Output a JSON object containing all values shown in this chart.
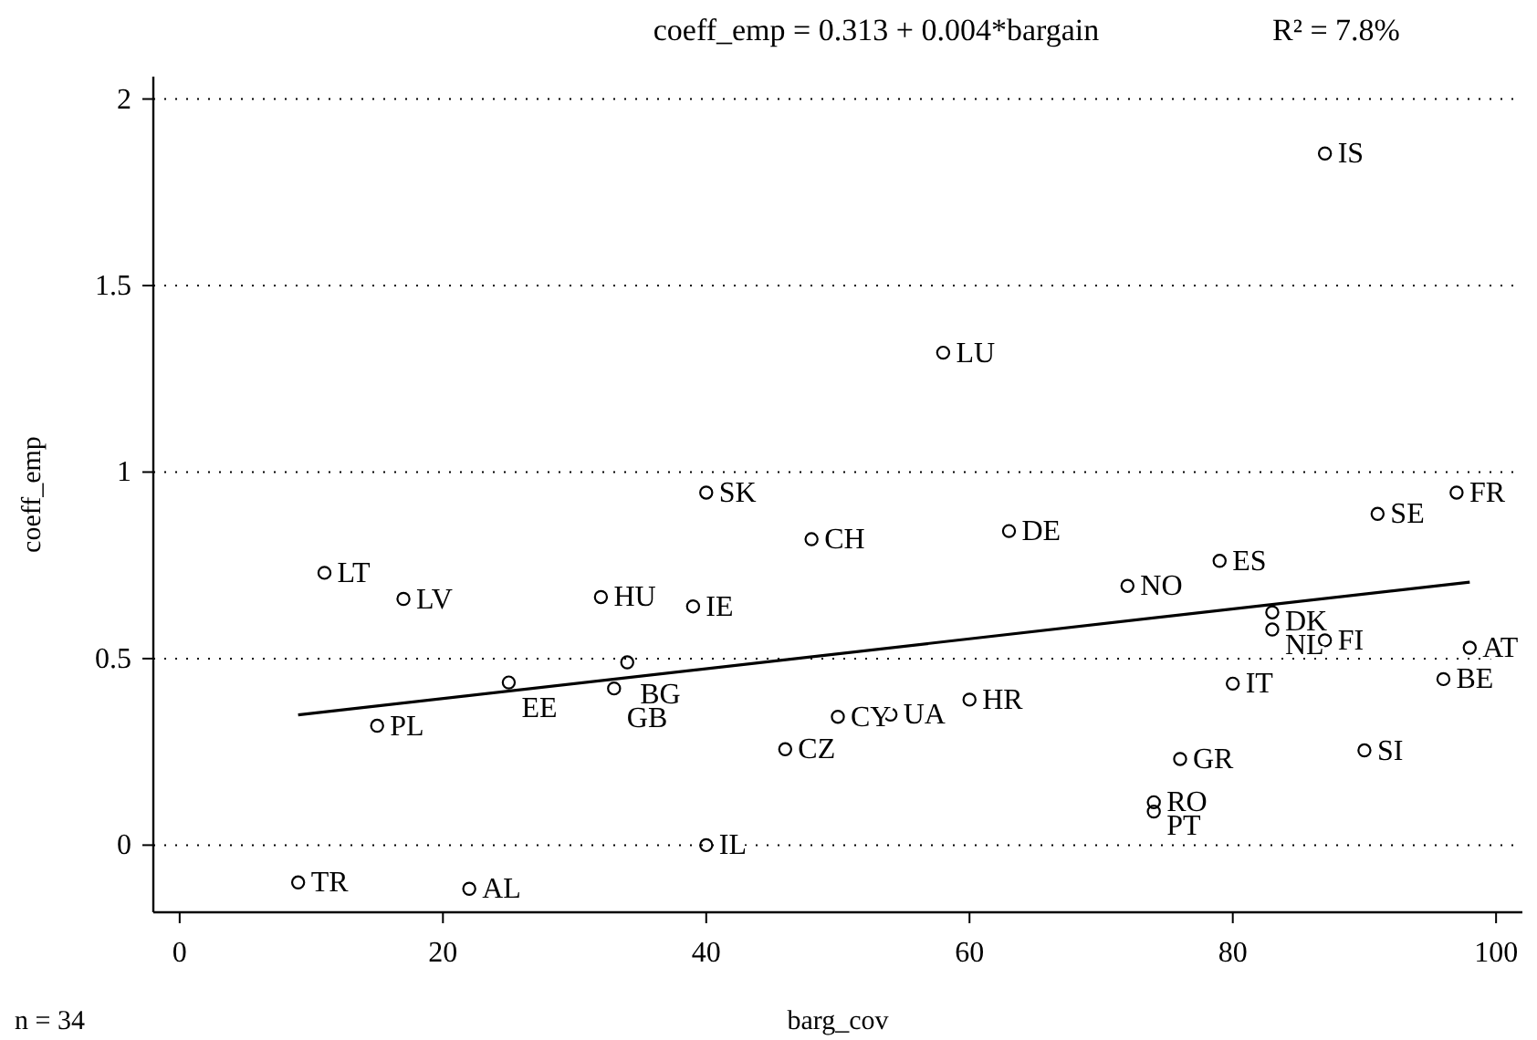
{
  "chart_data": {
    "type": "scatter",
    "title": "coeff_emp = 0.313 + 0.004*bargain",
    "subtitle": "R² = 7.8%",
    "xlabel": "barg_cov",
    "ylabel": "coeff_emp",
    "xlim": [
      -2,
      102
    ],
    "xticks": [
      0,
      20,
      40,
      60,
      80,
      100
    ],
    "ylim": [
      -0.18,
      2.06
    ],
    "yticks": [
      0,
      0.5,
      1,
      1.5,
      2
    ],
    "grid": "y",
    "series": [
      {
        "marker": "circle",
        "color": "#000000",
        "x": [
          87,
          58,
          40,
          97,
          48,
          63,
          91,
          11,
          32,
          17,
          39,
          79,
          72,
          83,
          83,
          87,
          34,
          98,
          25,
          33,
          96,
          80,
          15,
          60,
          50,
          54,
          46,
          90,
          76,
          74,
          74,
          40,
          9,
          22
        ],
        "values": [
          1.854,
          1.32,
          0.945,
          0.945,
          0.82,
          0.842,
          0.888,
          0.73,
          0.665,
          0.66,
          0.64,
          0.762,
          0.695,
          0.624,
          0.578,
          0.549,
          0.49,
          0.529,
          0.436,
          0.42,
          0.445,
          0.433,
          0.32,
          0.39,
          0.344,
          0.35,
          0.257,
          0.254,
          0.231,
          0.115,
          0.09,
          0,
          -0.1,
          -0.117
        ]
      },
      {
        "type": "line",
        "color": "#000000",
        "x": [
          9,
          98
        ],
        "values": [
          0.349,
          0.705
        ]
      }
    ],
    "annotations": [
      {
        "text": "IS",
        "x": 87,
        "y": 1.854
      },
      {
        "text": "LU",
        "x": 58,
        "y": 1.32
      },
      {
        "text": "SK",
        "x": 40,
        "y": 0.945
      },
      {
        "text": "FR",
        "x": 97,
        "y": 0.945
      },
      {
        "text": "CH",
        "x": 48,
        "y": 0.82
      },
      {
        "text": "DE",
        "x": 63,
        "y": 0.842
      },
      {
        "text": "SE",
        "x": 91,
        "y": 0.888
      },
      {
        "text": "LT",
        "x": 11,
        "y": 0.73
      },
      {
        "text": "HU",
        "x": 32,
        "y": 0.665
      },
      {
        "text": "LV",
        "x": 17,
        "y": 0.66
      },
      {
        "text": "IE",
        "x": 39,
        "y": 0.64
      },
      {
        "text": "ES",
        "x": 79,
        "y": 0.762
      },
      {
        "text": "NO",
        "x": 72,
        "y": 0.695
      },
      {
        "text": "DK",
        "x": 83,
        "y": 0.624
      },
      {
        "text": "NL",
        "x": 83,
        "y": 0.578
      },
      {
        "text": "FI",
        "x": 87,
        "y": 0.549
      },
      {
        "text": "BG",
        "x": 34,
        "y": 0.49
      },
      {
        "text": "AT",
        "x": 98,
        "y": 0.529
      },
      {
        "text": "EE",
        "x": 25,
        "y": 0.436
      },
      {
        "text": "GB",
        "x": 33,
        "y": 0.42
      },
      {
        "text": "BE",
        "x": 96,
        "y": 0.445
      },
      {
        "text": "IT",
        "x": 80,
        "y": 0.433
      },
      {
        "text": "PL",
        "x": 15,
        "y": 0.32
      },
      {
        "text": "HR",
        "x": 60,
        "y": 0.39
      },
      {
        "text": "CY",
        "x": 50,
        "y": 0.344
      },
      {
        "text": "UA",
        "x": 54,
        "y": 0.35
      },
      {
        "text": "CZ",
        "x": 46,
        "y": 0.257
      },
      {
        "text": "SI",
        "x": 90,
        "y": 0.254
      },
      {
        "text": "GR",
        "x": 76,
        "y": 0.231
      },
      {
        "text": "RO",
        "x": 74,
        "y": 0.115
      },
      {
        "text": "PT",
        "x": 74,
        "y": 0.09
      },
      {
        "text": "IL",
        "x": 40,
        "y": 0
      },
      {
        "text": "TR",
        "x": 9,
        "y": -0.1
      },
      {
        "text": "AL",
        "x": 22,
        "y": -0.117
      },
      "n = 34"
    ]
  }
}
